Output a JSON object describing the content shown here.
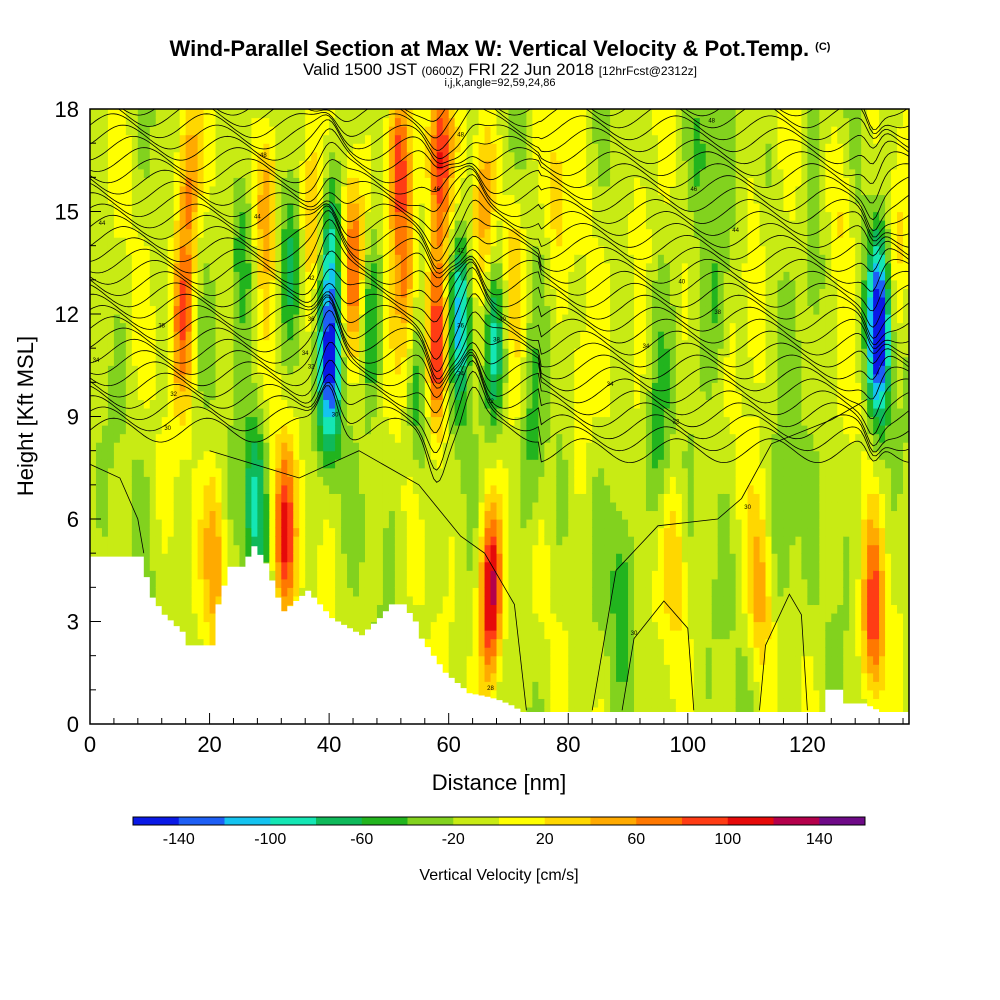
{
  "title": {
    "main": "Wind-Parallel Section at Max W: Vertical Velocity & Pot.Temp.",
    "main_unit": "(C)",
    "valid_prefix": "Valid 1500 JST",
    "valid_utc": "(0600Z)",
    "valid_date": "FRI 22 Jun 2018",
    "forecast": "[12hrFcst@2312z]",
    "indices": "i,j,k,angle=92,59,24,86"
  },
  "chart_data": {
    "type": "heatmap",
    "xlabel": "Distance [nm]",
    "ylabel": "Height [Kft MSL]",
    "xlim": [
      0,
      137
    ],
    "ylim": [
      0,
      18
    ],
    "x_ticks": [
      0,
      20,
      40,
      60,
      80,
      100,
      120
    ],
    "x_tick_labels": [
      "0",
      "20",
      "40",
      "60",
      "80",
      "100",
      "120"
    ],
    "y_ticks": [
      0,
      3,
      6,
      9,
      12,
      15,
      18
    ],
    "y_tick_labels": [
      "0",
      "3",
      "6",
      "9",
      "12",
      "15",
      "18"
    ],
    "colorbar": {
      "title": "Vertical Velocity [cm/s]",
      "levels": [
        -160,
        -140,
        -120,
        -100,
        -80,
        -60,
        -40,
        -20,
        0,
        20,
        40,
        60,
        80,
        100,
        120,
        140,
        160
      ],
      "tick_values": [
        -140,
        -100,
        -60,
        -20,
        20,
        60,
        100,
        140
      ],
      "tick_labels": [
        "-140",
        "-100",
        "-60",
        "-20",
        "20",
        "60",
        "100",
        "140"
      ],
      "colors": [
        "#0a19e6",
        "#1e5ff5",
        "#14c3f0",
        "#14e6b4",
        "#0fb95a",
        "#22b41e",
        "#82d21e",
        "#c8eb14",
        "#ffff00",
        "#ffd700",
        "#ffaa00",
        "#ff7800",
        "#ff3c14",
        "#e60a0a",
        "#b4004b",
        "#6e0a87"
      ]
    },
    "terrain_kft": [
      [
        0,
        4.9
      ],
      [
        8,
        4.9
      ],
      [
        10,
        3.7
      ],
      [
        12,
        3.2
      ],
      [
        15,
        2.7
      ],
      [
        16,
        2.3
      ],
      [
        20,
        2.3
      ],
      [
        21,
        3.5
      ],
      [
        23,
        4.6
      ],
      [
        25,
        4.6
      ],
      [
        27,
        5.2
      ],
      [
        29,
        4.7
      ],
      [
        31,
        3.7
      ],
      [
        32,
        3.3
      ],
      [
        34,
        3.6
      ],
      [
        36,
        3.9
      ],
      [
        38,
        3.5
      ],
      [
        40,
        3.1
      ],
      [
        42,
        2.9
      ],
      [
        45,
        2.6
      ],
      [
        48,
        3.1
      ],
      [
        50,
        3.5
      ],
      [
        52,
        3.5
      ],
      [
        54,
        3.0
      ],
      [
        55,
        2.5
      ],
      [
        57,
        2.0
      ],
      [
        59,
        1.5
      ],
      [
        61,
        1.2
      ],
      [
        63,
        0.9
      ],
      [
        66,
        0.8
      ],
      [
        68,
        0.7
      ],
      [
        70,
        0.55
      ],
      [
        72,
        0.35
      ],
      [
        76,
        0.35
      ],
      [
        90,
        0.35
      ],
      [
        100,
        0.35
      ],
      [
        122,
        0.35
      ],
      [
        123,
        1.0
      ],
      [
        125,
        1.0
      ],
      [
        126,
        0.6
      ],
      [
        129,
        0.6
      ],
      [
        132,
        0.35
      ],
      [
        137,
        0.35
      ]
    ],
    "w_features": [
      {
        "x": 15.5,
        "z": 12.0,
        "w": 85
      },
      {
        "x": 16.5,
        "z": 16.0,
        "w": 80
      },
      {
        "x": 21.0,
        "z": 5.0,
        "w": 60
      },
      {
        "x": 25.5,
        "z": 14.0,
        "w": -55
      },
      {
        "x": 27.5,
        "z": 6.5,
        "w": -75
      },
      {
        "x": 29.5,
        "z": 15.5,
        "w": 75
      },
      {
        "x": 32.5,
        "z": 5.5,
        "w": 105
      },
      {
        "x": 33.5,
        "z": 13.5,
        "w": -45
      },
      {
        "x": 37.0,
        "z": 15.0,
        "w": 70
      },
      {
        "x": 40.0,
        "z": 10.5,
        "w": -120
      },
      {
        "x": 40.5,
        "z": 14.5,
        "w": -70
      },
      {
        "x": 44.0,
        "z": 13.5,
        "w": 85
      },
      {
        "x": 47.0,
        "z": 12.0,
        "w": -55
      },
      {
        "x": 51.5,
        "z": 16.5,
        "w": 115
      },
      {
        "x": 53.0,
        "z": 13.0,
        "w": 75
      },
      {
        "x": 55.0,
        "z": 9.5,
        "w": -45
      },
      {
        "x": 58.0,
        "z": 11.0,
        "w": 120
      },
      {
        "x": 58.5,
        "z": 16.5,
        "w": 110
      },
      {
        "x": 62.0,
        "z": 12.0,
        "w": -95
      },
      {
        "x": 66.0,
        "z": 15.5,
        "w": 65
      },
      {
        "x": 67.5,
        "z": 11.0,
        "w": -80
      },
      {
        "x": 67.0,
        "z": 3.8,
        "w": 150
      },
      {
        "x": 71.0,
        "z": 13.5,
        "w": 50
      },
      {
        "x": 74.0,
        "z": 8.0,
        "w": -45
      },
      {
        "x": 78.0,
        "z": 15.5,
        "w": 40
      },
      {
        "x": 82.0,
        "z": 9.5,
        "w": 35
      },
      {
        "x": 89.0,
        "z": 4.5,
        "w": -45
      },
      {
        "x": 92.0,
        "z": 14.5,
        "w": 40
      },
      {
        "x": 95.0,
        "z": 8.0,
        "w": -40
      },
      {
        "x": 98.0,
        "z": 5.0,
        "w": 45
      },
      {
        "x": 102.0,
        "z": 16.5,
        "w": -50
      },
      {
        "x": 105.0,
        "z": 12.5,
        "w": -45
      },
      {
        "x": 111.0,
        "z": 13.0,
        "w": 45
      },
      {
        "x": 112.0,
        "z": 4.0,
        "w": 55
      },
      {
        "x": 116.0,
        "z": 5.5,
        "w": -40
      },
      {
        "x": 121.0,
        "z": 13.5,
        "w": -40
      },
      {
        "x": 126.0,
        "z": 15.0,
        "w": 35
      },
      {
        "x": 132.0,
        "z": 11.5,
        "w": -150
      },
      {
        "x": 131.0,
        "z": 3.0,
        "w": 100
      },
      {
        "x": 135.0,
        "z": 14.0,
        "w": 35
      }
    ],
    "theta_labels": [
      {
        "x": 2,
        "z": 14.6,
        "text": "44"
      },
      {
        "x": 29,
        "z": 16.6,
        "text": "48"
      },
      {
        "x": 28,
        "z": 14.8,
        "text": "44"
      },
      {
        "x": 12,
        "z": 11.6,
        "text": "38"
      },
      {
        "x": 1,
        "z": 10.6,
        "text": "34"
      },
      {
        "x": 14,
        "z": 9.6,
        "text": "32"
      },
      {
        "x": 13,
        "z": 8.6,
        "text": "30"
      },
      {
        "x": 37,
        "z": 13.0,
        "text": "42"
      },
      {
        "x": 37,
        "z": 11.8,
        "text": "36"
      },
      {
        "x": 36,
        "z": 10.8,
        "text": "34"
      },
      {
        "x": 37,
        "z": 10.4,
        "text": "32"
      },
      {
        "x": 41,
        "z": 9.0,
        "text": "30"
      },
      {
        "x": 62,
        "z": 17.2,
        "text": "48"
      },
      {
        "x": 58,
        "z": 15.6,
        "text": "46"
      },
      {
        "x": 62,
        "z": 13.8,
        "text": "42"
      },
      {
        "x": 62,
        "z": 11.6,
        "text": "36"
      },
      {
        "x": 62,
        "z": 10.2,
        "text": "34"
      },
      {
        "x": 69,
        "z": 11.8,
        "text": "40"
      },
      {
        "x": 68,
        "z": 11.2,
        "text": "38"
      },
      {
        "x": 67,
        "z": 9.4,
        "text": "32"
      },
      {
        "x": 104,
        "z": 17.6,
        "text": "48"
      },
      {
        "x": 101,
        "z": 15.6,
        "text": "46"
      },
      {
        "x": 108,
        "z": 14.4,
        "text": "44"
      },
      {
        "x": 99,
        "z": 12.9,
        "text": "40"
      },
      {
        "x": 105,
        "z": 12.0,
        "text": "38"
      },
      {
        "x": 93,
        "z": 11.0,
        "text": "34"
      },
      {
        "x": 87,
        "z": 9.9,
        "text": "34"
      },
      {
        "x": 98,
        "z": 8.8,
        "text": "32"
      },
      {
        "x": 110,
        "z": 6.3,
        "text": "30"
      },
      {
        "x": 91,
        "z": 2.6,
        "text": "30"
      },
      {
        "x": 67,
        "z": 1.0,
        "text": "28"
      }
    ]
  }
}
